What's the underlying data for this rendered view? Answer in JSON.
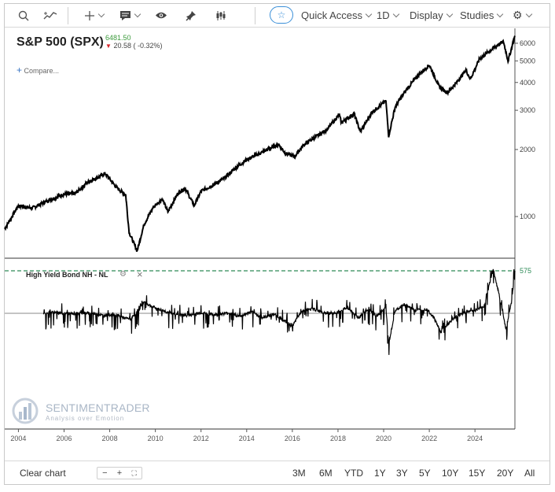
{
  "toolbar": {
    "quick_access": "Quick Access",
    "interval": "1D",
    "display": "Display",
    "studies": "Studies"
  },
  "header": {
    "title": "S&P 500 (SPX)",
    "last_price": "6481.50",
    "change": "20.58 ( -0.32%)",
    "compare": "Compare..."
  },
  "indicator": {
    "label": "High Yield Bond NH - NL",
    "level_label": "575"
  },
  "watermark": {
    "name": "SENTIMENTRADER",
    "tagline": "Analysis over Emotion"
  },
  "bottom_bar": {
    "clear_chart": "Clear chart",
    "zoom_out": "−",
    "zoom_in": "+",
    "ranges": [
      "3M",
      "6M",
      "YTD",
      "1Y",
      "3Y",
      "5Y",
      "10Y",
      "15Y",
      "20Y",
      "All"
    ]
  },
  "chart_data": [
    {
      "type": "line",
      "title": "S&P 500 (SPX)",
      "y_scale": "log",
      "y_ticks": [
        1000,
        2000,
        3000,
        4000,
        5000,
        6000
      ],
      "ylim": [
        650,
        7000
      ],
      "x_ticks": [
        "2004",
        "2006",
        "2008",
        "2010",
        "2012",
        "2014",
        "2016",
        "2018",
        "2020",
        "2022",
        "2024"
      ],
      "xlim": [
        2003.4,
        2025.75
      ],
      "x": [
        2003.4,
        2004.0,
        2004.6,
        2005.3,
        2006.0,
        2006.5,
        2007.0,
        2007.6,
        2007.8,
        2008.3,
        2008.7,
        2008.85,
        2009.2,
        2009.5,
        2009.9,
        2010.3,
        2010.55,
        2011.0,
        2011.3,
        2011.7,
        2012.0,
        2012.5,
        2013.0,
        2013.5,
        2014.0,
        2014.7,
        2015.4,
        2015.7,
        2016.1,
        2016.5,
        2017.0,
        2017.5,
        2018.05,
        2018.15,
        2018.7,
        2018.98,
        2019.5,
        2020.1,
        2020.22,
        2020.5,
        2020.9,
        2021.5,
        2022.0,
        2022.45,
        2022.8,
        2023.2,
        2023.6,
        2023.8,
        2024.2,
        2024.6,
        2025.0,
        2025.25,
        2025.45,
        2025.75
      ],
      "y": [
        880,
        1120,
        1090,
        1180,
        1260,
        1270,
        1420,
        1520,
        1560,
        1350,
        1250,
        850,
        700,
        920,
        1100,
        1200,
        1050,
        1280,
        1340,
        1120,
        1300,
        1380,
        1480,
        1650,
        1800,
        1950,
        2110,
        1920,
        1860,
        2100,
        2270,
        2450,
        2870,
        2640,
        2900,
        2400,
        2950,
        3300,
        2300,
        3100,
        3600,
        4300,
        4790,
        3800,
        3600,
        4000,
        4550,
        4150,
        5100,
        5500,
        5900,
        6100,
        5000,
        6480
      ]
    },
    {
      "type": "line",
      "title": "High Yield Bond NH - NL",
      "reference_level": 575,
      "xlim": [
        2003.4,
        2025.75
      ],
      "x": [
        2005.1,
        2005.6,
        2006.2,
        2006.8,
        2007.3,
        2007.7,
        2008.2,
        2008.6,
        2008.9,
        2009.2,
        2009.5,
        2009.8,
        2010.1,
        2010.5,
        2011.0,
        2011.5,
        2012.0,
        2012.6,
        2013.2,
        2013.7,
        2014.2,
        2014.7,
        2015.2,
        2015.6,
        2016.0,
        2016.4,
        2016.9,
        2017.4,
        2017.9,
        2018.4,
        2018.9,
        2019.3,
        2019.7,
        2020.1,
        2020.22,
        2020.5,
        2020.9,
        2021.4,
        2021.9,
        2022.2,
        2022.5,
        2022.8,
        2023.2,
        2023.6,
        2024.0,
        2024.4,
        2024.8,
        2025.2,
        2025.35,
        2025.6,
        2025.75
      ],
      "y": [
        0,
        10,
        -5,
        5,
        0,
        -30,
        -10,
        -60,
        -80,
        20,
        150,
        100,
        60,
        20,
        -20,
        -30,
        10,
        -20,
        5,
        -40,
        20,
        -60,
        -10,
        -90,
        -180,
        30,
        60,
        10,
        0,
        80,
        -60,
        60,
        -40,
        80,
        -420,
        30,
        120,
        40,
        60,
        -60,
        -250,
        -150,
        -40,
        20,
        40,
        100,
        600,
        60,
        -220,
        150,
        575
      ]
    }
  ]
}
